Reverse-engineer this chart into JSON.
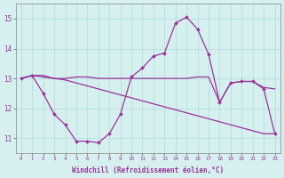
{
  "bg_color": "#d6f0f0",
  "grid_color": "#b0d8d8",
  "line_color": "#993399",
  "x_ticks": [
    0,
    1,
    2,
    3,
    4,
    5,
    6,
    7,
    8,
    9,
    10,
    11,
    12,
    13,
    14,
    15,
    16,
    17,
    18,
    19,
    20,
    21,
    22,
    23
  ],
  "xlabel": "Windchill (Refroidissement éolien,°C)",
  "ylim": [
    10.5,
    15.5
  ],
  "yticks": [
    11,
    12,
    13,
    14,
    15
  ],
  "xlim": [
    -0.5,
    23.5
  ],
  "line1_x": [
    0,
    1,
    2,
    3,
    4,
    5,
    6,
    7,
    8,
    9,
    10,
    11,
    12,
    13,
    14,
    15,
    16,
    17,
    18,
    19,
    20,
    21,
    22,
    23
  ],
  "line1_y": [
    13.0,
    13.1,
    13.1,
    13.0,
    13.0,
    13.05,
    13.05,
    13.0,
    13.0,
    13.0,
    13.0,
    13.0,
    13.0,
    13.0,
    13.0,
    13.0,
    13.05,
    13.05,
    12.2,
    12.85,
    12.9,
    12.9,
    12.7,
    12.65
  ],
  "line2_x": [
    0,
    1,
    2,
    3,
    4,
    5,
    6,
    7,
    8,
    9,
    10,
    11,
    12,
    13,
    14,
    15,
    16,
    17,
    18,
    19,
    20,
    21,
    22,
    23
  ],
  "line2_y": [
    13.0,
    13.1,
    13.05,
    13.0,
    12.95,
    12.85,
    12.75,
    12.65,
    12.55,
    12.45,
    12.35,
    12.25,
    12.15,
    12.05,
    11.95,
    11.85,
    11.75,
    11.65,
    11.55,
    11.45,
    11.35,
    11.25,
    11.15,
    11.15
  ],
  "line3_x": [
    0,
    1,
    2,
    3,
    4,
    5,
    6,
    7,
    8,
    9,
    10,
    11,
    12,
    13,
    14,
    15,
    16,
    17,
    18,
    19,
    20,
    21,
    22,
    23
  ],
  "line3_y": [
    13.0,
    13.1,
    12.5,
    11.8,
    11.45,
    10.9,
    10.9,
    10.85,
    11.15,
    11.8,
    13.05,
    13.35,
    13.75,
    13.85,
    14.85,
    15.05,
    14.65,
    13.8,
    12.2,
    12.85,
    12.9,
    12.9,
    12.65,
    11.15
  ]
}
